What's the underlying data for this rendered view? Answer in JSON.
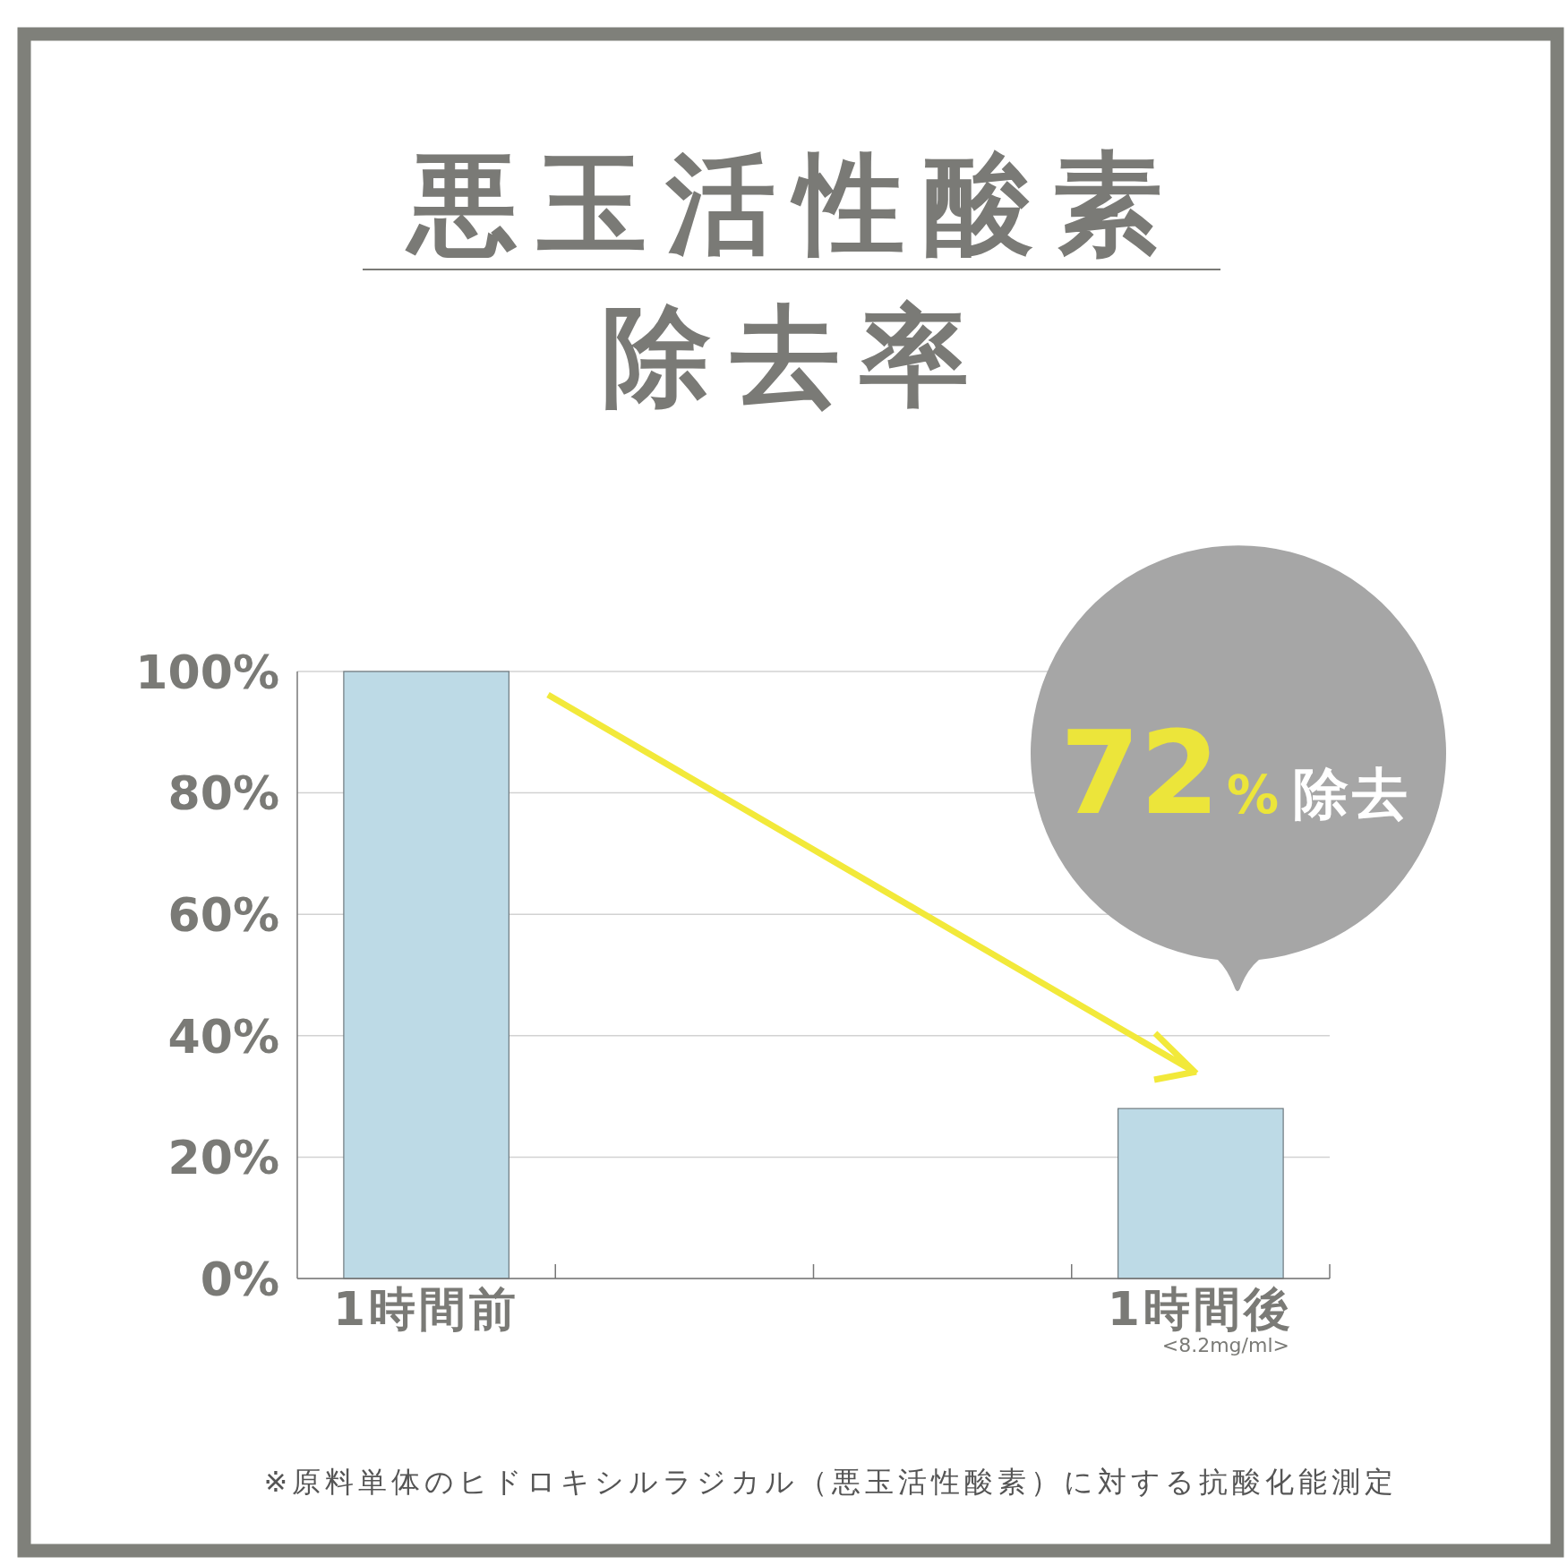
{
  "chart_data": {
    "type": "bar",
    "title": "悪玉活性酸素",
    "subtitle": "除去率",
    "categories": [
      "1時間前",
      null,
      null,
      "1時間後"
    ],
    "values": [
      100,
      null,
      null,
      28
    ],
    "color": "#bddae6",
    "ylim": [
      0,
      100
    ],
    "yticks": [
      {
        "value": 0,
        "label": "0%"
      },
      {
        "value": 20,
        "label": "20%"
      },
      {
        "value": 40,
        "label": "40%"
      },
      {
        "value": 60,
        "label": "60%"
      },
      {
        "value": 80,
        "label": "80%"
      },
      {
        "value": 100,
        "label": "100%"
      }
    ],
    "grid": "y",
    "annotations": [
      "72% 除去",
      "<8.2mg/ml>",
      "※原料単体のヒドロキシルラジカル（悪玉活性酸素）に対する抗酸化能測定"
    ]
  }
}
